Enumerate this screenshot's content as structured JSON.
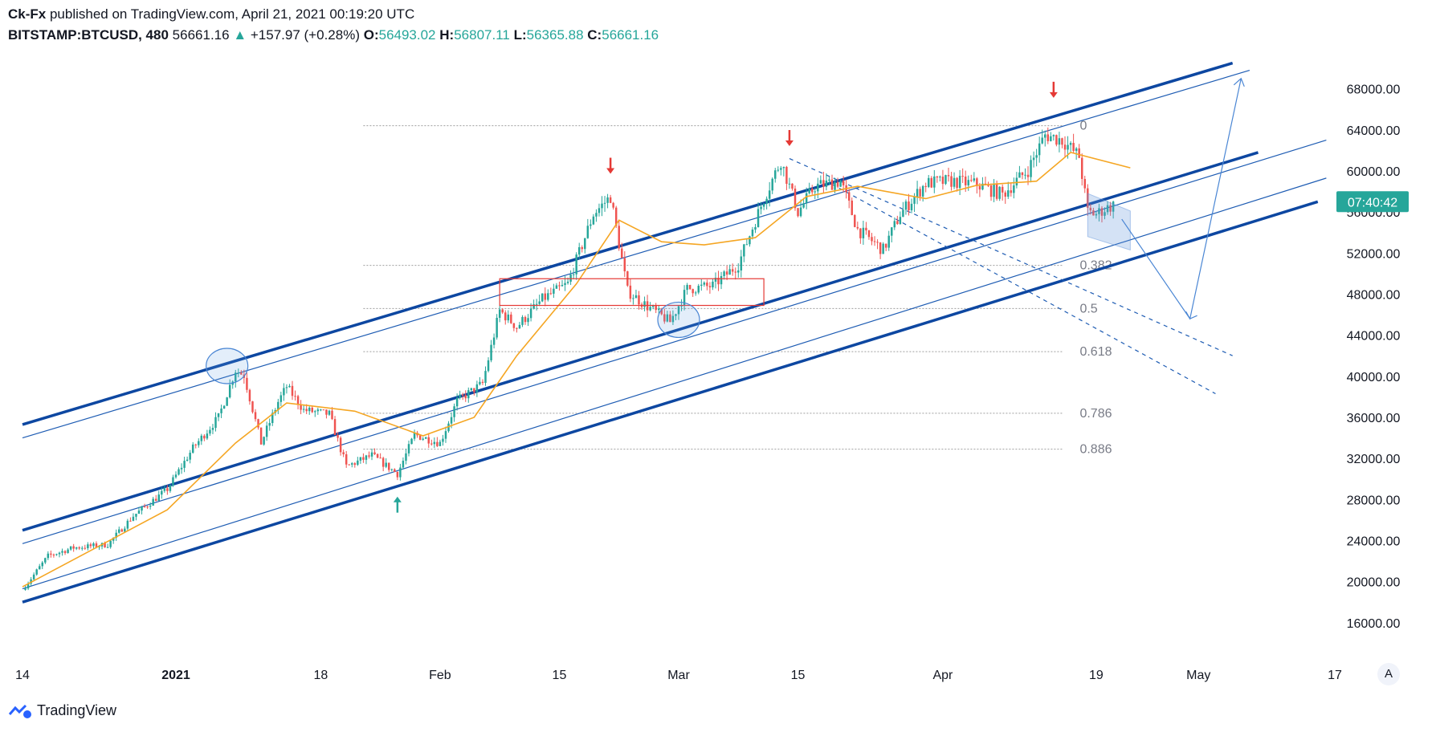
{
  "header": {
    "author": "Ck-Fx",
    "published": "published on TradingView.com, April 21, 2021 00:19:20 UTC",
    "symbol": "BITSTAMP:BTCUSD, 480",
    "last": "56661.16",
    "change_arrow": "▲",
    "change": "+157.97 (+0.28%)",
    "o_label": "O:",
    "o": "56493.02",
    "h_label": "H:",
    "h": "56807.11",
    "l_label": "L:",
    "l": "56365.88",
    "c_label": "C:",
    "c": "56661.16"
  },
  "footer": {
    "brand": "TradingView",
    "logo_icon": "tradingview-logo-icon"
  },
  "scale_button": "A",
  "colors": {
    "up": "#26a69a",
    "down": "#ef5350",
    "channel": "#0d47a1",
    "ma": "#f5a623",
    "fib": "#9e9e9e",
    "arrow_red": "#e53935",
    "arrow_green": "#26a69a"
  },
  "chart_data": {
    "type": "candlestick",
    "symbol": "BITSTAMP:BTCUSD",
    "interval": "480",
    "y_ticks": [
      "68000.00",
      "64000.00",
      "60000.00",
      "56000.00",
      "52000.00",
      "48000.00",
      "44000.00",
      "40000.00",
      "36000.00",
      "32000.00",
      "28000.00",
      "24000.00",
      "20000.00",
      "16000.00"
    ],
    "y_tick_values": [
      68000,
      64000,
      60000,
      56000,
      52000,
      48000,
      44000,
      40000,
      36000,
      32000,
      28000,
      24000,
      20000,
      16000
    ],
    "ylim": [
      14000,
      70500
    ],
    "x_ticks": [
      "14",
      "2021",
      "18",
      "Feb",
      "15",
      "Mar",
      "15",
      "Apr",
      "19",
      "May",
      "17"
    ],
    "x_tick_dates": [
      "2020-12-14",
      "2021-01-01",
      "2021-01-18",
      "2021-02-01",
      "2021-02-15",
      "2021-03-01",
      "2021-03-15",
      "2021-04-01",
      "2021-04-19",
      "2021-05-01",
      "2021-05-17"
    ],
    "price_label": "07:40:42",
    "price_label_value": 57000,
    "close_path": [
      [
        "2020-12-14",
        19200
      ],
      [
        "2020-12-17",
        22500
      ],
      [
        "2020-12-20",
        23300
      ],
      [
        "2020-12-24",
        23600
      ],
      [
        "2020-12-27",
        26400
      ],
      [
        "2020-12-31",
        29000
      ],
      [
        "2021-01-03",
        33000
      ],
      [
        "2021-01-06",
        36000
      ],
      [
        "2021-01-08",
        40600
      ],
      [
        "2021-01-09",
        40100
      ],
      [
        "2021-01-11",
        33500
      ],
      [
        "2021-01-13",
        37500
      ],
      [
        "2021-01-14",
        39000
      ],
      [
        "2021-01-16",
        36700
      ],
      [
        "2021-01-19",
        36300
      ],
      [
        "2021-01-21",
        31200
      ],
      [
        "2021-01-24",
        32300
      ],
      [
        "2021-01-27",
        30500
      ],
      [
        "2021-01-29",
        34300
      ],
      [
        "2021-02-01",
        33500
      ],
      [
        "2021-02-03",
        37600
      ],
      [
        "2021-02-06",
        39300
      ],
      [
        "2021-02-08",
        46400
      ],
      [
        "2021-02-10",
        44800
      ],
      [
        "2021-02-13",
        47500
      ],
      [
        "2021-02-16",
        49000
      ],
      [
        "2021-02-19",
        55800
      ],
      [
        "2021-02-21",
        57500
      ],
      [
        "2021-02-23",
        48300
      ],
      [
        "2021-02-25",
        47000
      ],
      [
        "2021-02-28",
        45300
      ],
      [
        "2021-03-02",
        48500
      ],
      [
        "2021-03-05",
        48800
      ],
      [
        "2021-03-08",
        50900
      ],
      [
        "2021-03-11",
        57300
      ],
      [
        "2021-03-13",
        61000
      ],
      [
        "2021-03-15",
        56000
      ],
      [
        "2021-03-17",
        58500
      ],
      [
        "2021-03-20",
        59000
      ],
      [
        "2021-03-22",
        54300
      ],
      [
        "2021-03-25",
        52300
      ],
      [
        "2021-03-27",
        55800
      ],
      [
        "2021-03-30",
        58800
      ],
      [
        "2021-04-02",
        59000
      ],
      [
        "2021-04-05",
        58700
      ],
      [
        "2021-04-08",
        57700
      ],
      [
        "2021-04-11",
        60100
      ],
      [
        "2021-04-13",
        63500
      ],
      [
        "2021-04-15",
        63000
      ],
      [
        "2021-04-17",
        61400
      ],
      [
        "2021-04-18",
        56000
      ],
      [
        "2021-04-19",
        55800
      ],
      [
        "2021-04-20",
        56300
      ],
      [
        "2021-04-21",
        56661.16
      ]
    ],
    "moving_average": [
      [
        "2020-12-14",
        19500
      ],
      [
        "2020-12-31",
        27000
      ],
      [
        "2021-01-08",
        33500
      ],
      [
        "2021-01-14",
        37400
      ],
      [
        "2021-01-22",
        36600
      ],
      [
        "2021-01-30",
        34200
      ],
      [
        "2021-02-05",
        36000
      ],
      [
        "2021-02-10",
        42000
      ],
      [
        "2021-02-17",
        49000
      ],
      [
        "2021-02-22",
        55200
      ],
      [
        "2021-02-27",
        53100
      ],
      [
        "2021-03-04",
        52800
      ],
      [
        "2021-03-10",
        53500
      ],
      [
        "2021-03-16",
        57500
      ],
      [
        "2021-03-22",
        58500
      ],
      [
        "2021-03-30",
        57300
      ],
      [
        "2021-04-05",
        58600
      ],
      [
        "2021-04-12",
        59000
      ],
      [
        "2021-04-16",
        61800
      ],
      [
        "2021-04-23",
        60300
      ]
    ],
    "fibonacci": [
      {
        "level": "0",
        "price": 64400
      },
      {
        "level": "0.382",
        "price": 50800
      },
      {
        "level": "0.5",
        "price": 46600
      },
      {
        "level": "0.618",
        "price": 42400
      },
      {
        "level": "0.786",
        "price": 36400
      },
      {
        "level": "0.886",
        "price": 32900
      }
    ],
    "channel_thick": [
      {
        "from": [
          "2020-12-14",
          35300
        ],
        "to": [
          "2021-05-05",
          70500
        ]
      },
      {
        "from": [
          "2020-12-14",
          25000
        ],
        "to": [
          "2021-05-08",
          61800
        ]
      },
      {
        "from": [
          "2020-12-14",
          18000
        ],
        "to": [
          "2021-05-15",
          57000
        ]
      }
    ],
    "channel_thin": [
      {
        "from": [
          "2020-12-14",
          34000
        ],
        "to": [
          "2021-05-07",
          69800
        ]
      },
      {
        "from": [
          "2020-12-14",
          23700
        ],
        "to": [
          "2021-05-16",
          63000
        ]
      },
      {
        "from": [
          "2020-12-14",
          19300
        ],
        "to": [
          "2021-05-16",
          59300
        ]
      }
    ],
    "dashed_lines": [
      {
        "from": [
          "2021-03-14",
          61200
        ],
        "to": [
          "2021-05-05",
          42000
        ]
      },
      {
        "from": [
          "2021-03-19",
          58700
        ],
        "to": [
          "2021-05-03",
          38300
        ]
      }
    ],
    "projection_path": [
      [
        "2021-04-22",
        55300
      ],
      [
        "2021-04-30",
        45600
      ],
      [
        "2021-05-06",
        69000
      ]
    ],
    "support_box": {
      "from": [
        "2021-02-08",
        49500
      ],
      "to": [
        "2021-03-11",
        46900
      ]
    },
    "circles": [
      [
        "2021-01-07",
        41000
      ],
      [
        "2021-03-01",
        45500
      ]
    ],
    "signal_arrows": [
      {
        "direction": "down",
        "date": "2021-02-21",
        "price": 60500
      },
      {
        "direction": "down",
        "date": "2021-03-14",
        "price": 63200
      },
      {
        "direction": "down",
        "date": "2021-04-14",
        "price": 67900
      },
      {
        "direction": "up",
        "date": "2021-01-27",
        "price": 27500
      }
    ],
    "current_wedge": [
      [
        "2021-04-18",
        57800
      ],
      [
        "2021-04-23",
        56100
      ],
      [
        "2021-04-23",
        52300
      ],
      [
        "2021-04-18",
        53600
      ]
    ]
  }
}
